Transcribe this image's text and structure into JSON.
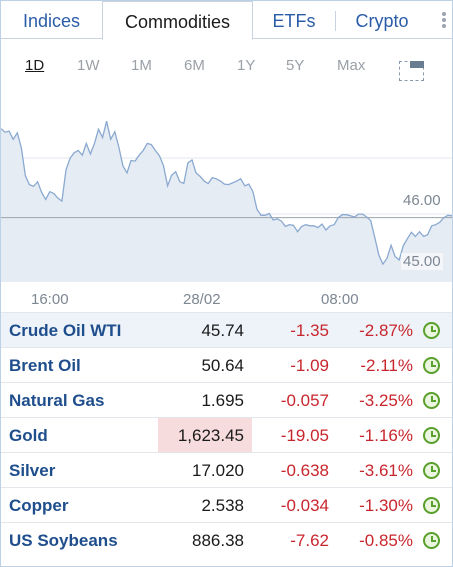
{
  "tabs": [
    {
      "label": "Indices"
    },
    {
      "label": "Commodities",
      "active": true
    },
    {
      "label": "ETFs"
    },
    {
      "label": "Crypto"
    }
  ],
  "ranges": [
    {
      "label": "1D",
      "active": true
    },
    {
      "label": "1W"
    },
    {
      "label": "1M"
    },
    {
      "label": "6M"
    },
    {
      "label": "1Y"
    },
    {
      "label": "5Y"
    },
    {
      "label": "Max"
    }
  ],
  "chart_data": {
    "type": "area",
    "x_tick_labels": [
      "16:00",
      "28/02",
      "08:00"
    ],
    "y_tick_labels": [
      "46.00",
      "45.00"
    ],
    "current_price_line": 45.74,
    "ylim": [
      44.85,
      47.5
    ],
    "grid": true,
    "series": [
      {
        "values": [
          47.25,
          47.19,
          47.21,
          47.07,
          47.18,
          46.93,
          46.45,
          46.3,
          46.27,
          46.35,
          46.17,
          46.05,
          46.18,
          46.15,
          46.07,
          46.02,
          46.55,
          46.75,
          46.84,
          46.88,
          46.8,
          47.0,
          46.82,
          47.0,
          47.24,
          47.1,
          47.38,
          47.07,
          47.2,
          46.94,
          46.62,
          46.5,
          46.71,
          46.7,
          46.8,
          46.88,
          47.0,
          46.98,
          46.88,
          46.79,
          46.62,
          46.28,
          46.46,
          46.52,
          46.35,
          46.32,
          46.67,
          46.72,
          46.5,
          46.44,
          46.36,
          46.32,
          46.42,
          46.4,
          46.36,
          46.31,
          46.3,
          46.33,
          46.36,
          46.4,
          46.28,
          46.31,
          46.18,
          45.88,
          45.78,
          45.78,
          45.81,
          45.7,
          45.72,
          45.68,
          45.59,
          45.62,
          45.61,
          45.5,
          45.59,
          45.62,
          45.6,
          45.6,
          45.57,
          45.63,
          45.53,
          45.6,
          45.62,
          45.74,
          45.79,
          45.79,
          45.77,
          45.75,
          45.8,
          45.8,
          45.75,
          45.69,
          45.4,
          45.1,
          44.95,
          45.05,
          45.27,
          45.08,
          45.02,
          45.26,
          45.38,
          45.49,
          45.42,
          45.5,
          45.42,
          45.45,
          45.6,
          45.62,
          45.66,
          45.74,
          45.78,
          45.77
        ]
      }
    ]
  },
  "table": {
    "rows": [
      {
        "name": "Crude Oil WTI",
        "last": "45.74",
        "chg": "-1.35",
        "pct": "-2.87%"
      },
      {
        "name": "Brent Oil",
        "last": "50.64",
        "chg": "-1.09",
        "pct": "-2.11%"
      },
      {
        "name": "Natural Gas",
        "last": "1.695",
        "chg": "-0.057",
        "pct": "-3.25%"
      },
      {
        "name": "Gold",
        "last": "1,623.45",
        "chg": "-19.05",
        "pct": "-1.16%"
      },
      {
        "name": "Silver",
        "last": "17.020",
        "chg": "-0.638",
        "pct": "-3.61%"
      },
      {
        "name": "Copper",
        "last": "2.538",
        "chg": "-0.034",
        "pct": "-1.30%"
      },
      {
        "name": "US Soybeans",
        "last": "886.38",
        "chg": "-7.62",
        "pct": "-0.85%"
      }
    ]
  },
  "icons": {
    "more": "vertical-dots-icon",
    "expand": "expand-chart-icon",
    "clock": "clock-icon"
  },
  "colors": {
    "link_blue": "#1f4e8c",
    "tab_blue": "#2a5ca8",
    "negative_red": "#c8262d",
    "clock_green": "#5aa02c",
    "chart_line": "#8aa9d0",
    "chart_fill": "#e6ecf3",
    "row_highlight": "#eef3fa",
    "flash_red_bg": "#f6dcdc"
  }
}
